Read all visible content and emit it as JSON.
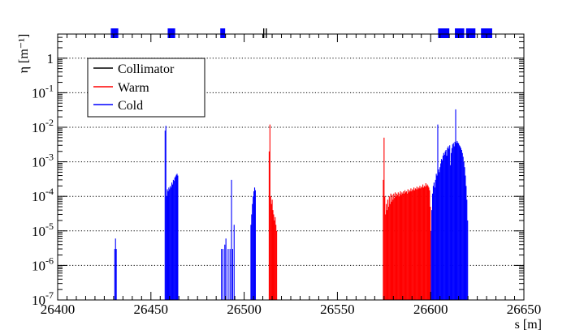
{
  "chart_data": {
    "type": "bar",
    "xlabel": "s [m]",
    "ylabel": "η [m⁻¹]",
    "xlim": [
      26400,
      26650
    ],
    "ylim": [
      1e-07,
      5
    ],
    "y_scale": "log",
    "grid": "horizontal-dotted",
    "x_ticks": [
      {
        "value": 26400,
        "label": "26400"
      },
      {
        "value": 26450,
        "label": "26450"
      },
      {
        "value": 26500,
        "label": "26500"
      },
      {
        "value": 26550,
        "label": "26550"
      },
      {
        "value": 26600,
        "label": "26600"
      },
      {
        "value": 26650,
        "label": "26650"
      }
    ],
    "y_ticks": [
      {
        "value": 1e-07,
        "base": "10",
        "exp": "-7"
      },
      {
        "value": 1e-06,
        "base": "10",
        "exp": "-6"
      },
      {
        "value": 1e-05,
        "base": "10",
        "exp": "-5"
      },
      {
        "value": 0.0001,
        "base": "10",
        "exp": "-4"
      },
      {
        "value": 0.001,
        "base": "10",
        "exp": "-3"
      },
      {
        "value": 0.01,
        "base": "10",
        "exp": "-2"
      },
      {
        "value": 0.1,
        "base": "10",
        "exp": "-1"
      },
      {
        "value": 1,
        "base": "1",
        "exp": ""
      }
    ],
    "legend": {
      "placement": "top-left",
      "entries": [
        {
          "name": "Collimator",
          "color": "#000000"
        },
        {
          "name": "Warm",
          "color": "#ff0000"
        },
        {
          "name": "Cold",
          "color": "#0000ff"
        }
      ]
    },
    "series": [
      {
        "name": "Cold",
        "color": "#0000ff",
        "points": [
          [
            26430.6,
            3e-06
          ],
          [
            26431.0,
            6e-06
          ],
          [
            26431.4,
            3e-06
          ],
          [
            26457.6,
            0.008
          ],
          [
            26458.0,
            0.011
          ],
          [
            26458.4,
            0.0001
          ],
          [
            26458.8,
            0.00016
          ],
          [
            26459.2,
            0.00014
          ],
          [
            26459.6,
            0.00018
          ],
          [
            26460.0,
            0.00016
          ],
          [
            26460.4,
            0.0002
          ],
          [
            26460.8,
            0.00018
          ],
          [
            26461.2,
            0.00025
          ],
          [
            26461.6,
            0.00022
          ],
          [
            26462.0,
            0.0003
          ],
          [
            26462.4,
            0.00028
          ],
          [
            26462.8,
            0.00035
          ],
          [
            26463.2,
            0.00038
          ],
          [
            26463.6,
            0.00042
          ],
          [
            26464.0,
            0.00045
          ],
          [
            26464.4,
            0.0004
          ],
          [
            26487.8,
            3e-06
          ],
          [
            26488.6,
            3e-06
          ],
          [
            26489.6,
            4e-06
          ],
          [
            26490.2,
            6e-06
          ],
          [
            26491.4,
            3e-06
          ],
          [
            26492.4,
            3e-06
          ],
          [
            26493.2,
            0.0003
          ],
          [
            26493.8,
            3e-06
          ],
          [
            26494.6,
            1.5e-05
          ],
          [
            26503.6,
            1.5e-05
          ],
          [
            26504.0,
            3e-05
          ],
          [
            26504.4,
            6e-05
          ],
          [
            26504.8,
            0.0001
          ],
          [
            26505.2,
            0.00014
          ],
          [
            26505.6,
            0.00018
          ],
          [
            26506.0,
            0.00015
          ],
          [
            26600.2,
            1e-05
          ],
          [
            26600.6,
            4e-05
          ],
          [
            26601.0,
            0.00012
          ],
          [
            26601.4,
            0.0002
          ],
          [
            26601.8,
            0.00025
          ],
          [
            26602.2,
            0.00018
          ],
          [
            26602.6,
            0.0003
          ],
          [
            26603.0,
            0.00045
          ],
          [
            26603.4,
            0.0004
          ],
          [
            26603.8,
            0.012
          ],
          [
            26604.2,
            0.0006
          ],
          [
            26604.6,
            0.0005
          ],
          [
            26605.0,
            0.0007
          ],
          [
            26605.4,
            0.0009
          ],
          [
            26605.8,
            0.0012
          ],
          [
            26606.2,
            0.0011
          ],
          [
            26606.6,
            0.0015
          ],
          [
            26607.0,
            0.0018
          ],
          [
            26607.4,
            0.0016
          ],
          [
            26607.8,
            0.002
          ],
          [
            26608.2,
            0.0022
          ],
          [
            26608.6,
            0.0015
          ],
          [
            26609.0,
            0.0025
          ],
          [
            26609.4,
            0.0028
          ],
          [
            26609.8,
            0.0024
          ],
          [
            26610.2,
            0.003
          ],
          [
            26610.6,
            0.0008
          ],
          [
            26611.0,
            0.0018
          ],
          [
            26611.4,
            0.0025
          ],
          [
            26611.8,
            0.0032
          ],
          [
            26612.2,
            0.0035
          ],
          [
            26612.6,
            0.0028
          ],
          [
            26613.0,
            0.0038
          ],
          [
            26613.4,
            0.033
          ],
          [
            26613.8,
            0.0035
          ],
          [
            26614.2,
            0.004
          ],
          [
            26614.6,
            0.0036
          ],
          [
            26615.0,
            0.0034
          ],
          [
            26615.4,
            0.003
          ],
          [
            26615.8,
            0.0028
          ],
          [
            26616.2,
            0.0025
          ],
          [
            26616.6,
            0.0022
          ],
          [
            26617.0,
            0.0018
          ],
          [
            26617.4,
            0.0014
          ],
          [
            26617.8,
            0.001
          ],
          [
            26618.2,
            0.0007
          ],
          [
            26618.6,
            0.0004
          ],
          [
            26619.0,
            0.0002
          ],
          [
            26619.4,
            8e-05
          ],
          [
            26619.8,
            2e-05
          ]
        ]
      },
      {
        "name": "Warm",
        "color": "#ff0000",
        "points": [
          [
            26513.4,
            0.002
          ],
          [
            26513.8,
            0.012
          ],
          [
            26514.2,
            0.0001
          ],
          [
            26514.6,
            6e-05
          ],
          [
            26515.0,
            8e-05
          ],
          [
            26515.4,
            4e-05
          ],
          [
            26515.8,
            3e-05
          ],
          [
            26516.2,
            2e-05
          ],
          [
            26516.6,
            2.5e-05
          ],
          [
            26517.0,
            1.5e-05
          ],
          [
            26517.4,
            1e-05
          ],
          [
            26574.6,
            0.0003
          ],
          [
            26575.0,
            0.005
          ],
          [
            26575.4,
            0.0001
          ],
          [
            26575.8,
            3e-05
          ],
          [
            26576.2,
            6e-05
          ],
          [
            26576.6,
            4e-05
          ],
          [
            26577.0,
            8e-05
          ],
          [
            26577.4,
            5e-05
          ],
          [
            26577.8,
            0.0001
          ],
          [
            26578.2,
            6e-05
          ],
          [
            26578.6,
            0.00012
          ],
          [
            26579.0,
            7e-05
          ],
          [
            26579.4,
            0.00011
          ],
          [
            26579.8,
            8e-05
          ],
          [
            26580.2,
            0.00012
          ],
          [
            26580.6,
            9e-05
          ],
          [
            26581.0,
            0.00013
          ],
          [
            26581.4,
            0.0001
          ],
          [
            26581.8,
            0.00012
          ],
          [
            26582.2,
            0.00011
          ],
          [
            26582.6,
            0.00013
          ],
          [
            26583.0,
            0.0001
          ],
          [
            26583.4,
            0.00012
          ],
          [
            26583.8,
            0.00014
          ],
          [
            26584.2,
            0.00011
          ],
          [
            26584.6,
            0.00013
          ],
          [
            26585.0,
            0.00012
          ],
          [
            26585.4,
            0.00014
          ],
          [
            26585.8,
            0.00012
          ],
          [
            26586.2,
            0.00015
          ],
          [
            26586.6,
            0.00013
          ],
          [
            26587.0,
            0.00014
          ],
          [
            26587.4,
            0.00012
          ],
          [
            26587.8,
            0.00016
          ],
          [
            26588.2,
            0.00013
          ],
          [
            26588.6,
            0.00015
          ],
          [
            26589.0,
            0.00014
          ],
          [
            26589.4,
            0.00017
          ],
          [
            26589.8,
            0.00014
          ],
          [
            26590.2,
            0.00016
          ],
          [
            26590.6,
            0.00015
          ],
          [
            26591.0,
            0.00018
          ],
          [
            26591.4,
            0.00015
          ],
          [
            26591.8,
            0.00017
          ],
          [
            26592.2,
            0.00016
          ],
          [
            26592.6,
            0.00019
          ],
          [
            26593.0,
            0.00016
          ],
          [
            26593.4,
            0.00018
          ],
          [
            26593.8,
            0.00017
          ],
          [
            26594.2,
            0.0002
          ],
          [
            26594.6,
            0.00017
          ],
          [
            26595.0,
            0.00019
          ],
          [
            26595.4,
            0.00018
          ],
          [
            26595.8,
            0.00022
          ],
          [
            26596.2,
            0.00018
          ],
          [
            26596.6,
            0.0002
          ],
          [
            26597.0,
            0.00019
          ],
          [
            26597.4,
            0.00024
          ],
          [
            26597.8,
            0.0002
          ],
          [
            26598.2,
            0.00022
          ],
          [
            26598.6,
            0.0002
          ],
          [
            26599.0,
            0.00018
          ],
          [
            26599.4,
            0.00015
          ],
          [
            26599.8,
            5e-05
          ]
        ]
      },
      {
        "name": "Collimator",
        "color": "#000000",
        "points": []
      }
    ],
    "elements_strip": [
      {
        "type": "Cold",
        "color": "#0000ff",
        "start": 26428.5,
        "end": 26432.5
      },
      {
        "type": "Cold",
        "color": "#0000ff",
        "start": 26459.0,
        "end": 26463.0
      },
      {
        "type": "Cold",
        "color": "#0000ff",
        "start": 26487.2,
        "end": 26489.8
      },
      {
        "type": "Collimator",
        "color": "#000000",
        "start": 26510.2,
        "end": 26510.8
      },
      {
        "type": "Collimator",
        "color": "#000000",
        "start": 26511.6,
        "end": 26512.2
      },
      {
        "type": "Cold",
        "color": "#0000ff",
        "start": 26604.0,
        "end": 26610.0
      },
      {
        "type": "Cold",
        "color": "#0000ff",
        "start": 26613.0,
        "end": 26618.0
      },
      {
        "type": "Cold",
        "color": "#0000ff",
        "start": 26619.0,
        "end": 26624.0
      },
      {
        "type": "Cold",
        "color": "#0000ff",
        "start": 26627.0,
        "end": 26633.0
      }
    ]
  }
}
